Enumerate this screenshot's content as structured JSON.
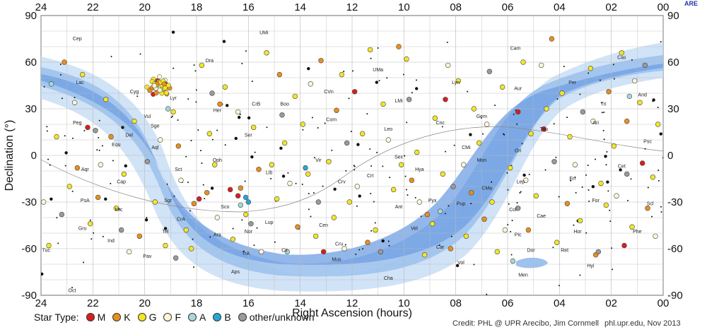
{
  "chart_data": {
    "type": "scatter",
    "ylabel": "Declination (°)",
    "xlabel": "Right Ascension (hours)",
    "x_ticks": [
      "24",
      "22",
      "20",
      "18",
      "16",
      "14",
      "12",
      "10",
      "08",
      "06",
      "04",
      "02",
      "00"
    ],
    "y_ticks": [
      "90",
      "60",
      "30",
      "0",
      "-30",
      "-60",
      "-90"
    ],
    "xlim": [
      24,
      0
    ],
    "ylim": [
      -90,
      90
    ],
    "grid": true,
    "legend": {
      "title": "Star Type:",
      "entries": [
        {
          "label": "M",
          "color": "#d81e1e"
        },
        {
          "label": "K",
          "color": "#e8901c"
        },
        {
          "label": "G",
          "color": "#f3e626"
        },
        {
          "label": "F",
          "color": "#fbf6d6"
        },
        {
          "label": "A",
          "color": "#a9d7d8"
        },
        {
          "label": "B",
          "color": "#27a6d6"
        },
        {
          "label": "other/unknown",
          "color": "#9a9a9a"
        }
      ]
    },
    "series": [
      {
        "name": "M",
        "color": "#d81e1e",
        "points": [
          [
            17.9,
            -28
          ],
          [
            16.7,
            -22
          ],
          [
            16.4,
            -26
          ],
          [
            5.6,
            28
          ],
          [
            4.6,
            17
          ],
          [
            19.5,
            48
          ],
          [
            22.2,
            18
          ],
          [
            1.5,
            -58
          ],
          [
            8.4,
            36
          ],
          [
            11.9,
            41
          ],
          [
            0.8,
            -5
          ],
          [
            13.1,
            -62
          ]
        ]
      },
      {
        "name": "K",
        "color": "#e8901c",
        "points": [
          [
            18.1,
            -31
          ],
          [
            17.6,
            -24
          ],
          [
            16.3,
            -21
          ],
          [
            22.6,
            -8
          ],
          [
            21.3,
            12
          ],
          [
            19.8,
            42
          ],
          [
            14.8,
            52
          ],
          [
            13.2,
            61
          ],
          [
            11.4,
            -56
          ],
          [
            10.2,
            70
          ],
          [
            9.1,
            -38
          ],
          [
            7.4,
            -24
          ],
          [
            6.9,
            -41
          ],
          [
            5.2,
            -48
          ],
          [
            3.7,
            -31
          ],
          [
            2.1,
            41
          ],
          [
            1.4,
            22
          ],
          [
            23.1,
            60
          ],
          [
            21.8,
            -27
          ],
          [
            20.2,
            -52
          ],
          [
            18.7,
            6
          ],
          [
            17.1,
            33
          ],
          [
            15.6,
            -9
          ],
          [
            14.1,
            -46
          ],
          [
            12.6,
            29
          ],
          [
            9.7,
            -16
          ],
          [
            4.3,
            75
          ],
          [
            0.6,
            -34
          ],
          [
            2.6,
            -64
          ],
          [
            8.2,
            -60
          ]
        ]
      },
      {
        "name": "G",
        "color": "#f3e626",
        "points": [
          [
            23.4,
            12
          ],
          [
            22.9,
            -20
          ],
          [
            22.1,
            -44
          ],
          [
            21.5,
            36
          ],
          [
            20.8,
            -12
          ],
          [
            20.4,
            22
          ],
          [
            19.2,
            -58
          ],
          [
            18.9,
            28
          ],
          [
            18.4,
            -48
          ],
          [
            17.8,
            58
          ],
          [
            17.3,
            -6
          ],
          [
            16.9,
            44
          ],
          [
            16.1,
            -38
          ],
          [
            15.8,
            18
          ],
          [
            15.3,
            66
          ],
          [
            14.9,
            -28
          ],
          [
            14.6,
            8
          ],
          [
            14.2,
            38
          ],
          [
            13.7,
            -12
          ],
          [
            13.4,
            -52
          ],
          [
            12.9,
            -4
          ],
          [
            12.4,
            52
          ],
          [
            12.1,
            -30
          ],
          [
            11.6,
            14
          ],
          [
            11.1,
            -48
          ],
          [
            10.8,
            33
          ],
          [
            10.4,
            -22
          ],
          [
            9.9,
            62
          ],
          [
            9.5,
            2
          ],
          [
            9.2,
            -64
          ],
          [
            8.8,
            24
          ],
          [
            8.5,
            -12
          ],
          [
            7.9,
            48
          ],
          [
            7.6,
            -52
          ],
          [
            7.1,
            8
          ],
          [
            6.6,
            -30
          ],
          [
            6.2,
            44
          ],
          [
            5.9,
            -8
          ],
          [
            5.4,
            60
          ],
          [
            4.9,
            -26
          ],
          [
            4.5,
            30
          ],
          [
            4.1,
            -56
          ],
          [
            3.6,
            12
          ],
          [
            3.2,
            -42
          ],
          [
            2.8,
            56
          ],
          [
            2.4,
            -18
          ],
          [
            1.9,
            6
          ],
          [
            1.2,
            -46
          ],
          [
            0.9,
            34
          ],
          [
            0.4,
            -14
          ],
          [
            23.7,
            -58
          ],
          [
            22.4,
            52
          ],
          [
            21.1,
            -34
          ],
          [
            19.6,
            -30
          ],
          [
            18.2,
            -60
          ],
          [
            17.5,
            14
          ],
          [
            16.6,
            -54
          ],
          [
            15.1,
            -6
          ],
          [
            13.9,
            20
          ],
          [
            12.7,
            -40
          ],
          [
            11.3,
            68
          ],
          [
            10.1,
            -6
          ],
          [
            8.9,
            -44
          ],
          [
            7.3,
            30
          ],
          [
            6.4,
            -62
          ],
          [
            5.1,
            14
          ],
          [
            3.9,
            40
          ],
          [
            2.2,
            -32
          ],
          [
            1.6,
            66
          ],
          [
            0.2,
            20
          ]
        ]
      },
      {
        "name": "F",
        "color": "#fbf6d6",
        "points": [
          [
            23.9,
            -30
          ],
          [
            22.7,
            34
          ],
          [
            21.7,
            -6
          ],
          [
            20.6,
            -62
          ],
          [
            19.4,
            10
          ],
          [
            18.6,
            -16
          ],
          [
            17.2,
            -40
          ],
          [
            16.4,
            28
          ],
          [
            15.5,
            -62
          ],
          [
            14.4,
            -18
          ],
          [
            13.6,
            46
          ],
          [
            12.3,
            -60
          ],
          [
            11.8,
            -20
          ],
          [
            10.6,
            10
          ],
          [
            9.4,
            -30
          ],
          [
            8.3,
            58
          ],
          [
            7.7,
            -6
          ],
          [
            6.8,
            20
          ],
          [
            6.1,
            -48
          ],
          [
            5.3,
            -16
          ],
          [
            4.7,
            58
          ],
          [
            3.4,
            -6
          ],
          [
            2.7,
            22
          ],
          [
            1.8,
            -26
          ],
          [
            1.1,
            48
          ],
          [
            0.3,
            -52
          ]
        ]
      },
      {
        "name": "A",
        "color": "#a9d7d8",
        "points": [
          [
            23.6,
            46
          ],
          [
            19.1,
            30
          ],
          [
            16.3,
            -32
          ],
          [
            14.5,
            -62
          ],
          [
            8.6,
            -36
          ],
          [
            5.8,
            -68
          ],
          [
            1.3,
            38
          ]
        ]
      },
      {
        "name": "B",
        "color": "#27a6d6",
        "points": [
          [
            16.1,
            -27
          ],
          [
            13.8,
            -8
          ],
          [
            16.0,
            -30
          ]
        ]
      },
      {
        "name": "other/unknown",
        "color": "#9a9a9a",
        "points": [
          [
            23.2,
            -38
          ],
          [
            21.9,
            16
          ],
          [
            20.9,
            -48
          ],
          [
            19.9,
            -4
          ],
          [
            18.8,
            -66
          ],
          [
            17.4,
            40
          ],
          [
            15.9,
            -44
          ],
          [
            14.7,
            26
          ],
          [
            13.3,
            -30
          ],
          [
            12.2,
            8
          ],
          [
            10.9,
            -62
          ],
          [
            9.8,
            36
          ],
          [
            8.1,
            -20
          ],
          [
            6.7,
            54
          ],
          [
            5.6,
            -34
          ],
          [
            4.2,
            -4
          ],
          [
            3.1,
            28
          ],
          [
            2.5,
            -62
          ],
          [
            1.4,
            -12
          ],
          [
            0.7,
            58
          ]
        ]
      }
    ]
  },
  "sky_labels": [
    "Cep",
    "Dra",
    "UMi",
    "Cam",
    "Cas",
    "Lac",
    "Cyg",
    "Lyr",
    "Her",
    "CrB",
    "Boo",
    "CVn",
    "UMa",
    "Lyn",
    "Aur",
    "Per",
    "And",
    "Tri",
    "Vul",
    "Sge",
    "Del",
    "Peg",
    "Aql",
    "Oph",
    "Ser",
    "Com",
    "Leo",
    "LMi",
    "Cnc",
    "Gem",
    "Tau",
    "Ari",
    "Psc",
    "Equ",
    "Aqr",
    "Cap",
    "Sct",
    "Lib",
    "Vir",
    "Crv",
    "Crt",
    "Sex",
    "Hya",
    "CMi",
    "Mon",
    "Ori",
    "Eri",
    "Cet",
    "Scl",
    "For",
    "Lep",
    "CMa",
    "Pup",
    "Pyx",
    "Ant",
    "Vel",
    "Cen",
    "Lup",
    "Nor",
    "Sco",
    "Sgr",
    "Mic",
    "PsA",
    "Gru",
    "Ind",
    "Tel",
    "CrA",
    "Ara",
    "TrA",
    "Cir",
    "Cru",
    "Mus",
    "Car",
    "Pic",
    "Dor",
    "Col",
    "Cae",
    "Hor",
    "Ret",
    "Hyi",
    "Tuc",
    "Pav",
    "Aps",
    "Cha",
    "Vol",
    "Men",
    "Oct",
    "Phe"
  ],
  "legend_title": "Star Type:",
  "legend_labels": {
    "m": "M",
    "k": "K",
    "g": "G",
    "f": "F",
    "a": "A",
    "b": "B",
    "other": "other/unknown"
  },
  "credit_left": "Credit: PHL @ UPR Arecibo, Jim Cornmell",
  "credit_right": "phl.upr.edu, Nov 2013",
  "corner_mark": "ARE"
}
